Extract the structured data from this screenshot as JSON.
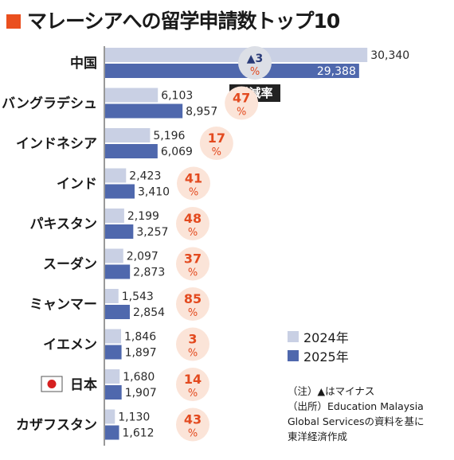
{
  "title": "マレーシアへの留学申請数トップ10",
  "colors": {
    "accent": "#ea4f1e",
    "series_2024": "#c9d0e4",
    "series_2025": "#4f68ad",
    "pct_circle": "#fbe4d8",
    "pct_text": "#e34a1f",
    "negative_circle": "#dcdfe6"
  },
  "chart_data": {
    "type": "bar",
    "orientation": "horizontal",
    "categories": [
      "中国",
      "バングラデシュ",
      "インドネシア",
      "インド",
      "パキスタン",
      "スーダン",
      "ミャンマー",
      "イエメン",
      "日本",
      "カザフスタン"
    ],
    "series": [
      {
        "name": "2024年",
        "values": [
          30340,
          6103,
          5196,
          2423,
          2199,
          2097,
          1543,
          1846,
          1680,
          1130
        ]
      },
      {
        "name": "2025年",
        "values": [
          29388,
          8957,
          6069,
          3410,
          3257,
          2873,
          2854,
          1897,
          1907,
          1612
        ]
      }
    ],
    "value_labels": {
      "2024": [
        "30,340",
        "6,103",
        "5,196",
        "2,423",
        "2,199",
        "2,097",
        "1,543",
        "1,846",
        "1,680",
        "1,130"
      ],
      "2025": [
        "29,388",
        "8,957",
        "6,069",
        "3,410",
        "3,257",
        "2,873",
        "2,854",
        "1,897",
        "1,907",
        "1,612"
      ]
    },
    "change_pct": [
      "▲3",
      "47",
      "17",
      "41",
      "48",
      "37",
      "85",
      "3",
      "14",
      "43"
    ],
    "change_negative": [
      true,
      false,
      false,
      false,
      false,
      false,
      false,
      false,
      false,
      false
    ],
    "pct_unit": "%",
    "change_label": "増減率",
    "axis_break": true,
    "flag_on_category": "日本",
    "legend_position": "bottom-right",
    "grid": false
  },
  "legend": [
    {
      "label": "2024年",
      "color": "#c9d0e4"
    },
    {
      "label": "2025年",
      "color": "#4f68ad"
    }
  ],
  "note": {
    "line1": "（注）▲はマイナス",
    "line2": "（出所）Education Malaysia",
    "line3": "Global Servicesの資料を基に",
    "line4": "東洋経済作成"
  }
}
